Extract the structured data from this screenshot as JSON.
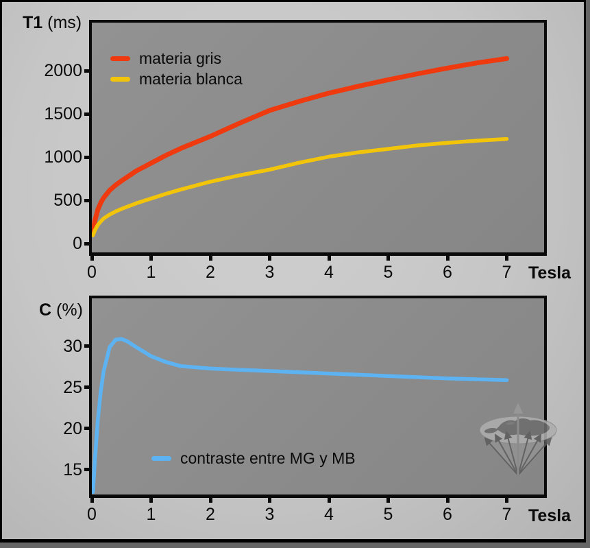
{
  "page": {
    "background_color": "#c6c6c6",
    "plot_background_color": "#8b8b8b",
    "border_color": "#000000",
    "text_color": "#0a0a0a"
  },
  "icons": {
    "watermark": "globe-with-arrow-fan-icon"
  },
  "chart_data": [
    {
      "type": "line",
      "title": "",
      "ylabel": "T1 (ms)",
      "ylabel_bold": "T1",
      "ylabel_rest": "(ms)",
      "xlabel": "Tesla",
      "xlim": [
        0,
        7.63
      ],
      "ylim": [
        -103,
        2556
      ],
      "x_ticks": [
        0,
        1,
        2,
        3,
        4,
        5,
        6,
        7
      ],
      "y_ticks": [
        0,
        500,
        1000,
        1500,
        2000
      ],
      "grid": false,
      "legend_position": "top-left-inside",
      "series": [
        {
          "name": "materia gris",
          "color": "#ee3a0e",
          "x": [
            0.02,
            0.05,
            0.1,
            0.15,
            0.2,
            0.3,
            0.4,
            0.5,
            0.75,
            1,
            1.25,
            1.5,
            2,
            2.5,
            3,
            3.5,
            4,
            4.5,
            5,
            5.5,
            6,
            6.5,
            7
          ],
          "y": [
            110,
            260,
            390,
            470,
            530,
            615,
            675,
            725,
            840,
            930,
            1020,
            1100,
            1240,
            1395,
            1540,
            1645,
            1740,
            1820,
            1895,
            1965,
            2030,
            2090,
            2140
          ]
        },
        {
          "name": "materia blanca",
          "color": "#f2c50a",
          "x": [
            0.02,
            0.05,
            0.1,
            0.15,
            0.2,
            0.3,
            0.4,
            0.5,
            0.75,
            1,
            1.25,
            1.5,
            2,
            2.5,
            3,
            3.5,
            4,
            4.5,
            5,
            5.5,
            6,
            6.5,
            7
          ],
          "y": [
            95,
            150,
            215,
            255,
            290,
            335,
            370,
            400,
            465,
            520,
            575,
            625,
            715,
            790,
            855,
            935,
            1005,
            1055,
            1095,
            1135,
            1165,
            1190,
            1210
          ]
        }
      ]
    },
    {
      "type": "line",
      "title": "",
      "ylabel": "C (%)",
      "ylabel_bold": "C",
      "ylabel_rest": "(%)",
      "xlabel": "Tesla",
      "xlim": [
        0,
        7.63
      ],
      "ylim": [
        12,
        35.83
      ],
      "x_ticks": [
        0,
        1,
        2,
        3,
        4,
        5,
        6,
        7
      ],
      "y_ticks": [
        15,
        20,
        25,
        30
      ],
      "grid": false,
      "legend_position": "bottom-center-inside",
      "series": [
        {
          "name": "contraste entre MG y MB",
          "color": "#5db3f2",
          "x": [
            0.02,
            0.05,
            0.1,
            0.15,
            0.2,
            0.3,
            0.4,
            0.5,
            0.6,
            0.75,
            1,
            1.25,
            1.5,
            2,
            2.5,
            3,
            3.5,
            4,
            4.5,
            5,
            5.5,
            6,
            6.5,
            7
          ],
          "y": [
            12.3,
            16.0,
            21.0,
            24.5,
            27.0,
            29.9,
            30.8,
            30.9,
            30.6,
            29.9,
            28.8,
            28.1,
            27.6,
            27.3,
            27.15,
            27.0,
            26.85,
            26.7,
            26.55,
            26.4,
            26.25,
            26.1,
            26.0,
            25.9
          ]
        }
      ]
    }
  ]
}
